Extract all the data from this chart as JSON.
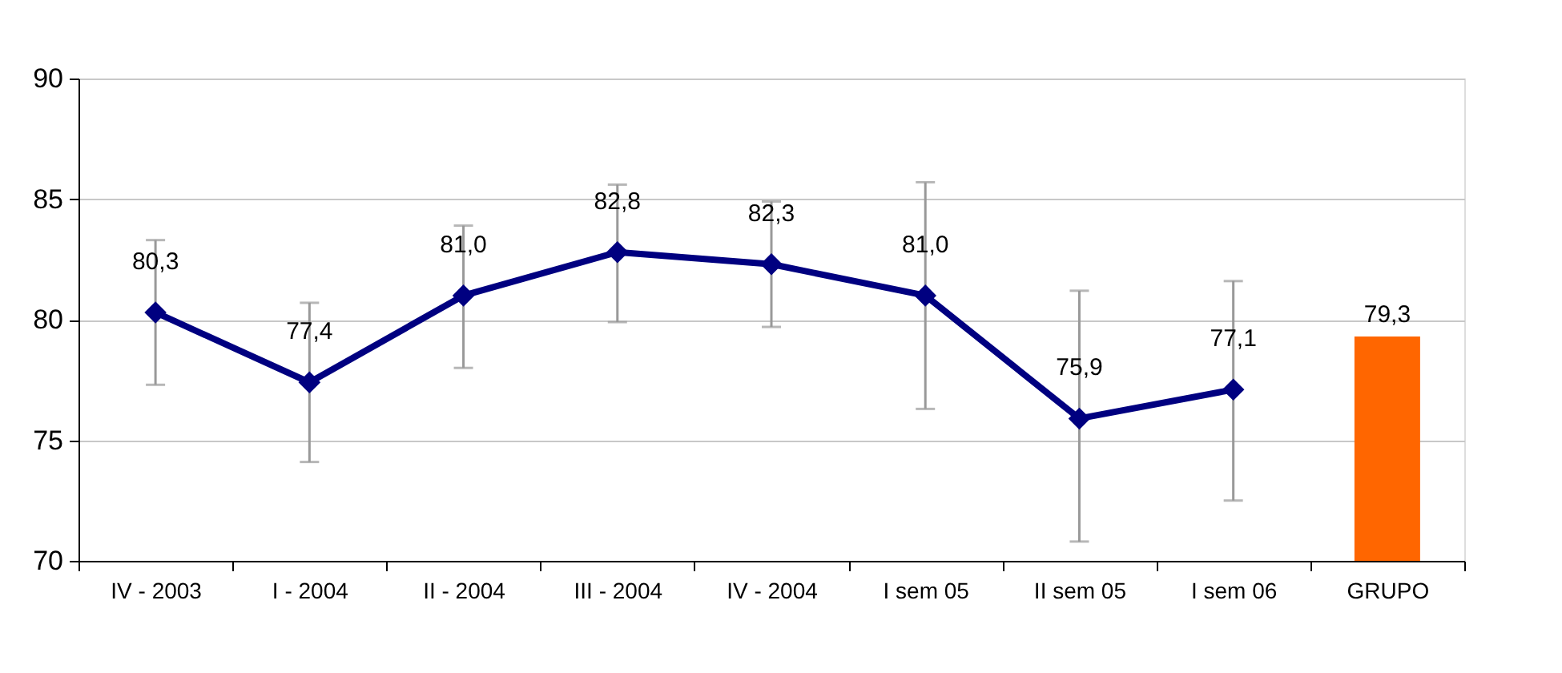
{
  "chart_data": {
    "type": "line",
    "categories": [
      "IV - 2003",
      "I - 2004",
      "II - 2004",
      "III - 2004",
      "IV - 2004",
      "I sem 05",
      "II sem 05",
      "I sem 06",
      "GRUPO"
    ],
    "series": [
      {
        "color": "#000080",
        "marker": "diamond",
        "values": [
          80.3,
          77.4,
          81.0,
          82.8,
          82.3,
          81.0,
          75.9,
          77.1,
          null
        ],
        "value_labels": [
          "80,3",
          "77,4",
          "81,0",
          "82,8",
          "82,3",
          "81,0",
          "75,9",
          "77,1",
          null
        ],
        "errors": [
          [
            77.3,
            83.3
          ],
          [
            74.1,
            80.7
          ],
          [
            78.0,
            83.9
          ],
          [
            79.9,
            85.6
          ],
          [
            79.7,
            84.9
          ],
          [
            76.3,
            85.7
          ],
          [
            70.8,
            81.2
          ],
          [
            72.5,
            81.6
          ],
          null
        ]
      },
      {
        "type": "bar",
        "color": "#ff6600",
        "values": [
          null,
          null,
          null,
          null,
          null,
          null,
          null,
          null,
          79.3
        ],
        "value_labels": [
          null,
          null,
          null,
          null,
          null,
          null,
          null,
          null,
          "79,3"
        ]
      }
    ],
    "ylim": [
      70,
      90
    ],
    "yticks": [
      70,
      75,
      80,
      85,
      90
    ],
    "grid": "y"
  }
}
